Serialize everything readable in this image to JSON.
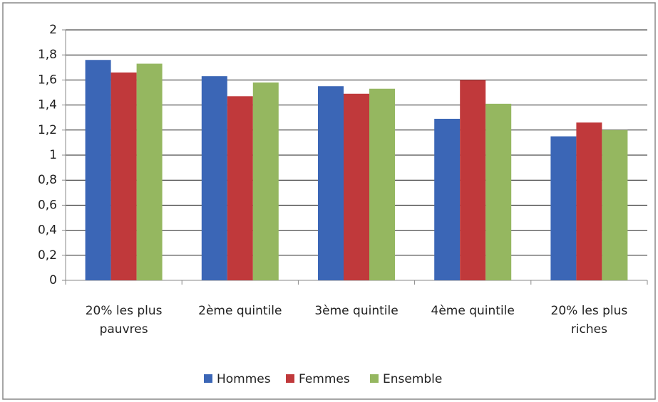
{
  "chart_data": {
    "type": "bar",
    "categories": [
      "20% les plus pauvres",
      "2ème quintile",
      "3ème quintile",
      "4ème quintile",
      "20% les plus riches"
    ],
    "series": [
      {
        "name": "Hommes",
        "color": "#3b66b6",
        "values": [
          1.76,
          1.63,
          1.55,
          1.29,
          1.15
        ]
      },
      {
        "name": "Femmes",
        "color": "#c0393b",
        "values": [
          1.66,
          1.47,
          1.49,
          1.6,
          1.26
        ]
      },
      {
        "name": "Ensemble",
        "color": "#95b760",
        "values": [
          1.73,
          1.58,
          1.53,
          1.41,
          1.2
        ]
      }
    ],
    "ylim": [
      0,
      2
    ],
    "yticks": [
      0,
      {
        "value": 0.2,
        "label": "0,2"
      },
      {
        "value": 0.4,
        "label": "0,4"
      },
      {
        "value": 0.6,
        "label": "0,6"
      },
      {
        "value": 0.8,
        "label": "0,8"
      },
      1,
      {
        "value": 1.2,
        "label": "1,2"
      },
      {
        "value": 1.4,
        "label": "1,4"
      },
      {
        "value": 1.6,
        "label": "1,6"
      },
      {
        "value": 1.8,
        "label": "1,8"
      },
      2
    ],
    "grid": true,
    "legend": "bottom"
  }
}
